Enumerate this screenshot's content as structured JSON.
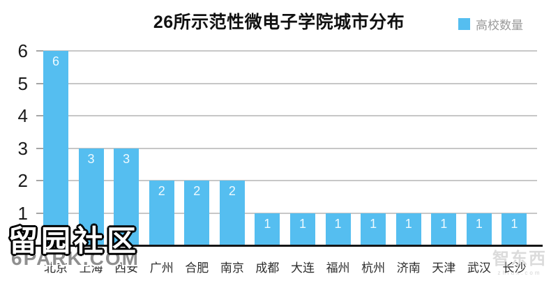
{
  "title": "26所示范性微电子学院城市分布",
  "legend": {
    "label": "高校数量",
    "swatch_color": "#55BEF0"
  },
  "chart_data": {
    "type": "bar",
    "title": "26所示范性微电子学院城市分布",
    "categories": [
      "北京",
      "上海",
      "西安",
      "广州",
      "合肥",
      "南京",
      "成都",
      "大连",
      "福州",
      "杭州",
      "济南",
      "天津",
      "武汉",
      "长沙"
    ],
    "series": [
      {
        "name": "高校数量",
        "values": [
          6,
          3,
          3,
          2,
          2,
          2,
          1,
          1,
          1,
          1,
          1,
          1,
          1,
          1
        ]
      }
    ],
    "values": [
      6,
      3,
      3,
      2,
      2,
      2,
      1,
      1,
      1,
      1,
      1,
      1,
      1,
      1
    ],
    "xlabel": "",
    "ylabel": "",
    "ylim": [
      0,
      6
    ],
    "yticks": [
      0,
      1,
      2,
      3,
      4,
      5,
      6
    ],
    "grid": true,
    "legend_position": "top-right",
    "bar_color": "#55BEF0",
    "bar_label_color": "#eefaff",
    "gridline_color": "#c7c7c7",
    "axis_color": "#161616"
  },
  "watermarks": {
    "site_name": "留园社区",
    "site_url": "6PARK.COM",
    "source_logo": "智东西",
    "source_url": "zhidx.com"
  }
}
